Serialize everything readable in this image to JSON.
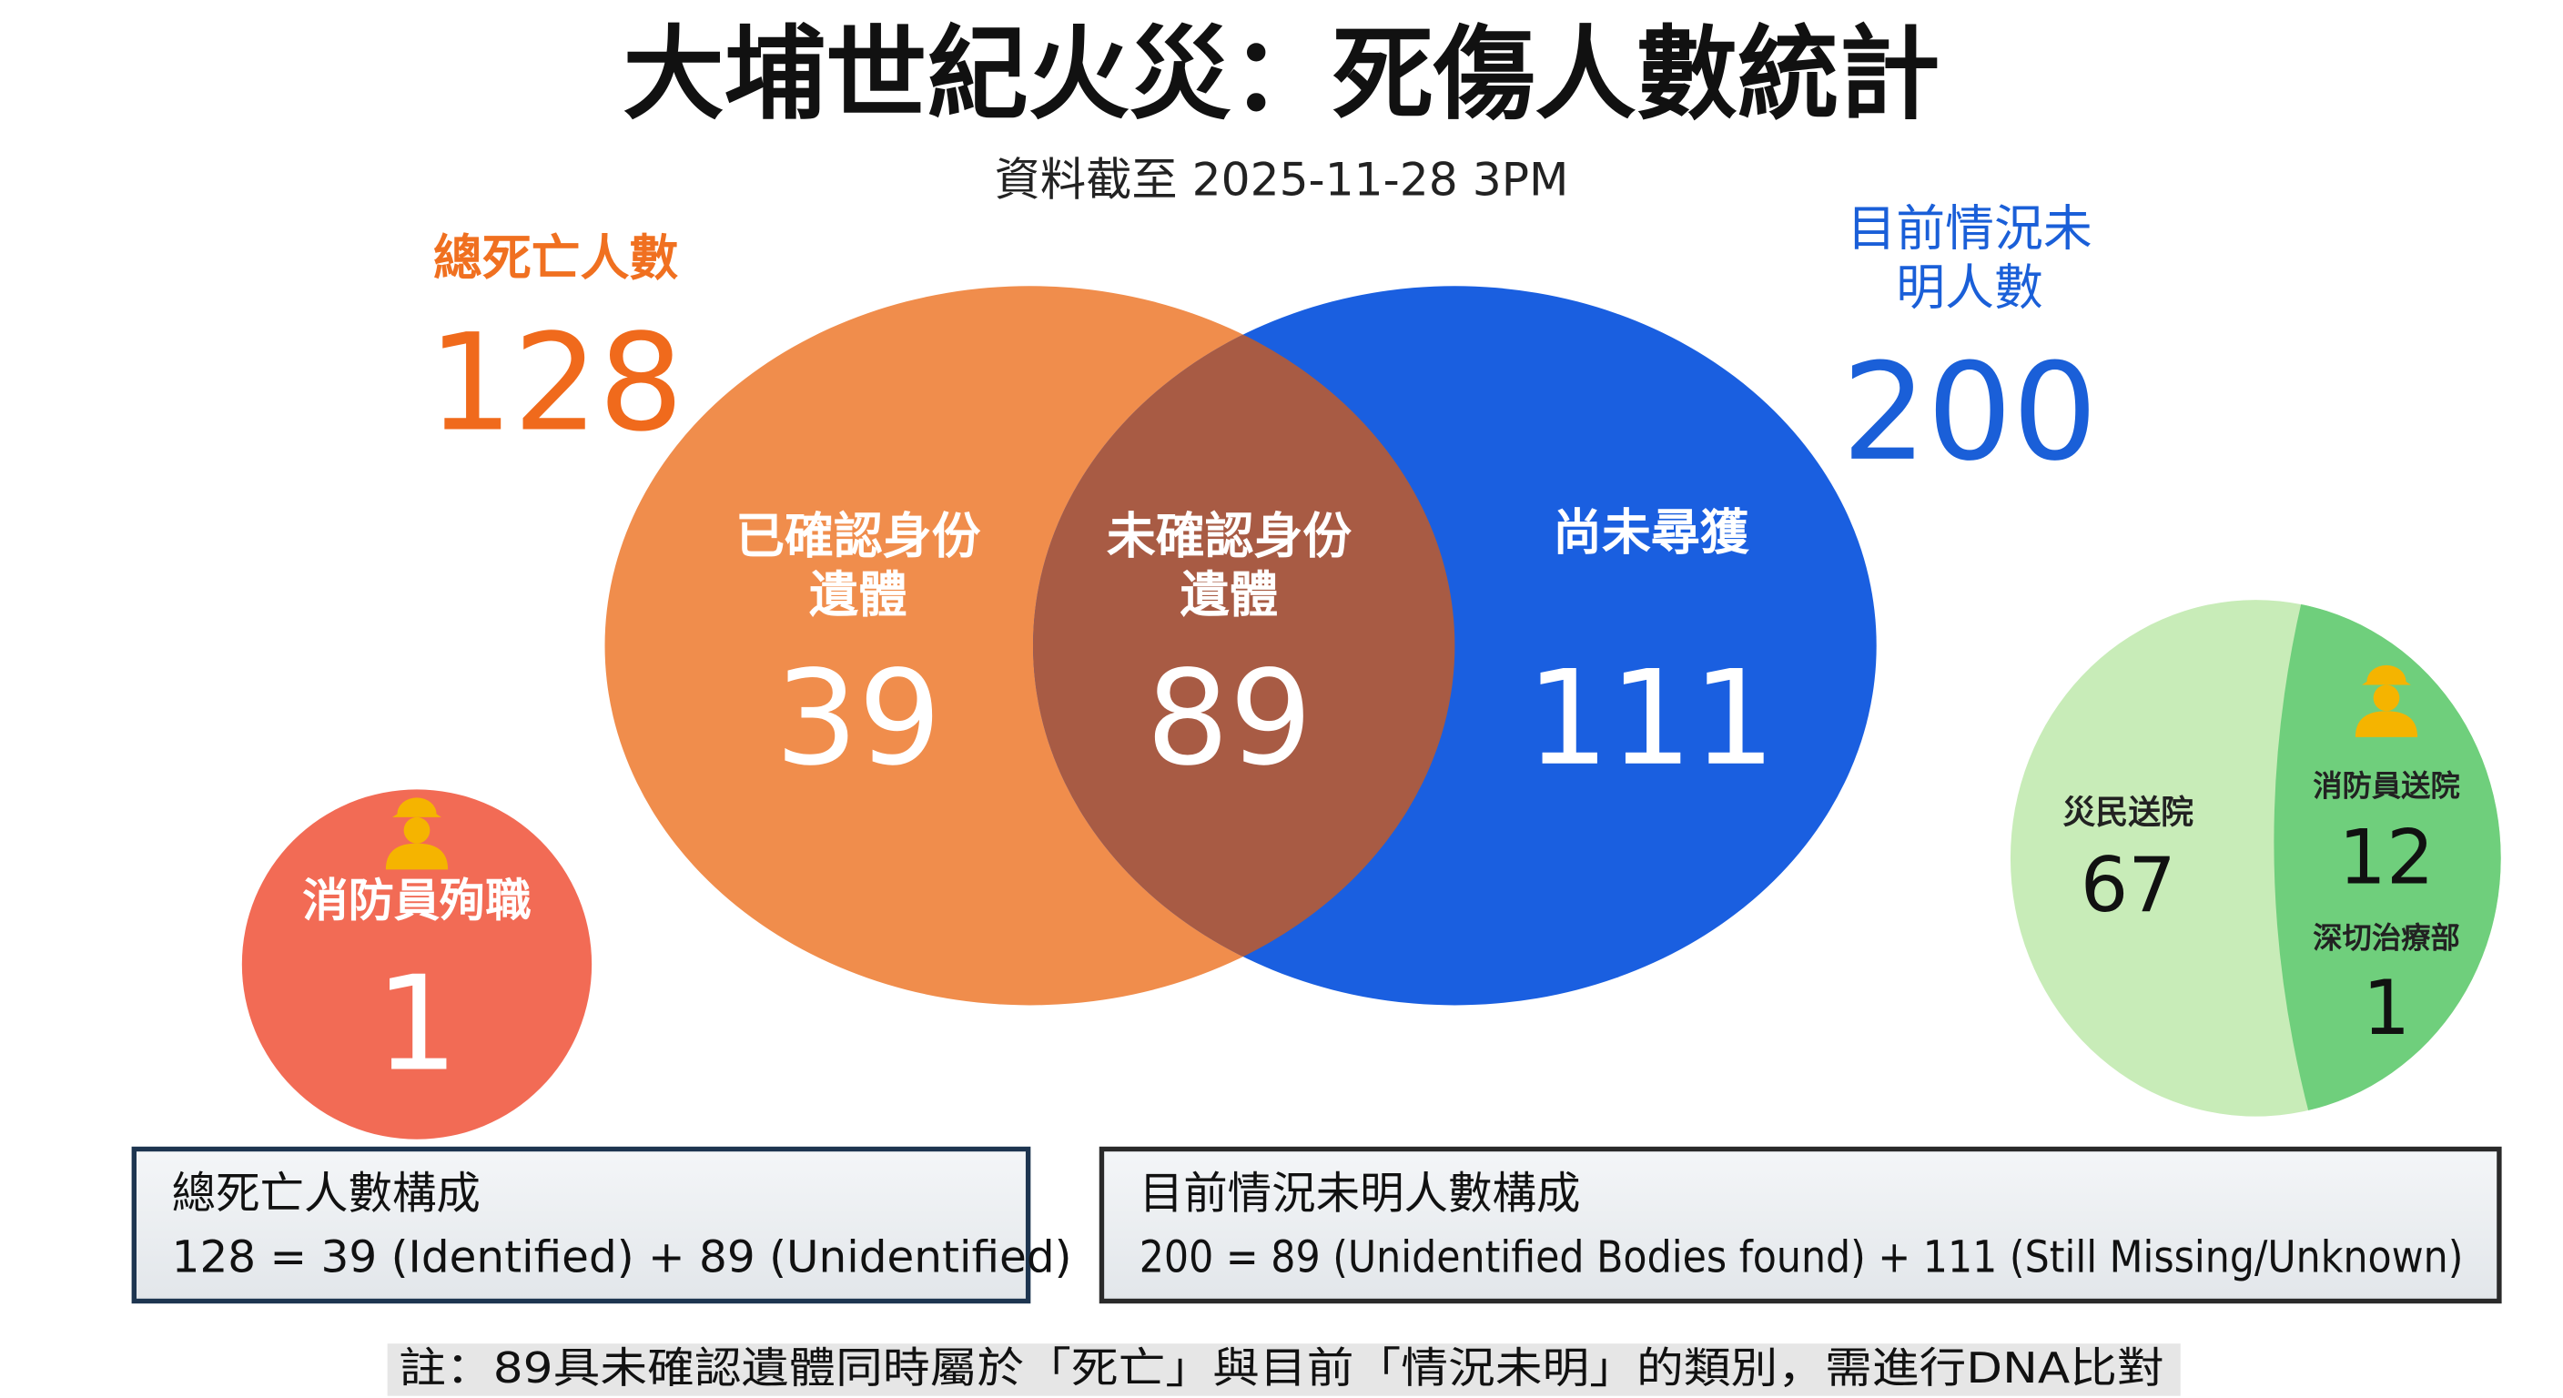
{
  "header": {
    "title": "大埔世紀火災：死傷人數統計",
    "subtitle": "資料截至 2025-11-28 3PM"
  },
  "venn": {
    "left": {
      "label": "總死亡人數",
      "total": 128
    },
    "right": {
      "label_lines": [
        "目前情況未",
        "明人數"
      ],
      "total": 200
    },
    "regions": [
      {
        "label_lines": [
          "已確認身份",
          "遺體"
        ],
        "value": 39
      },
      {
        "label_lines": [
          "未確認身份",
          "遺體"
        ],
        "value": 89
      },
      {
        "label_lines": [
          "尚未尋獲"
        ],
        "value": 111
      }
    ]
  },
  "firefighter_deaths": {
    "label": "消防員殉職",
    "value": 1
  },
  "hospitalized": {
    "residents": {
      "label": "災民送院",
      "value": 67
    },
    "firefighters": {
      "label": "消防員送院",
      "value": 12
    },
    "icu": {
      "label": "深切治療部",
      "value": 1
    }
  },
  "boxes": [
    {
      "title": "總死亡人數構成",
      "formula": "128 = 39 (Identified) + 89 (Unidentified)"
    },
    {
      "title": "目前情況未明人數構成",
      "formula": "200 = 89 (Unidentified Bodies found) + 111 (Still Missing/Unknown)"
    }
  ],
  "footnote": "註：89具未確認遺體同時屬於「死亡」與目前「情況未明」的類別，需進行DNA比對"
}
